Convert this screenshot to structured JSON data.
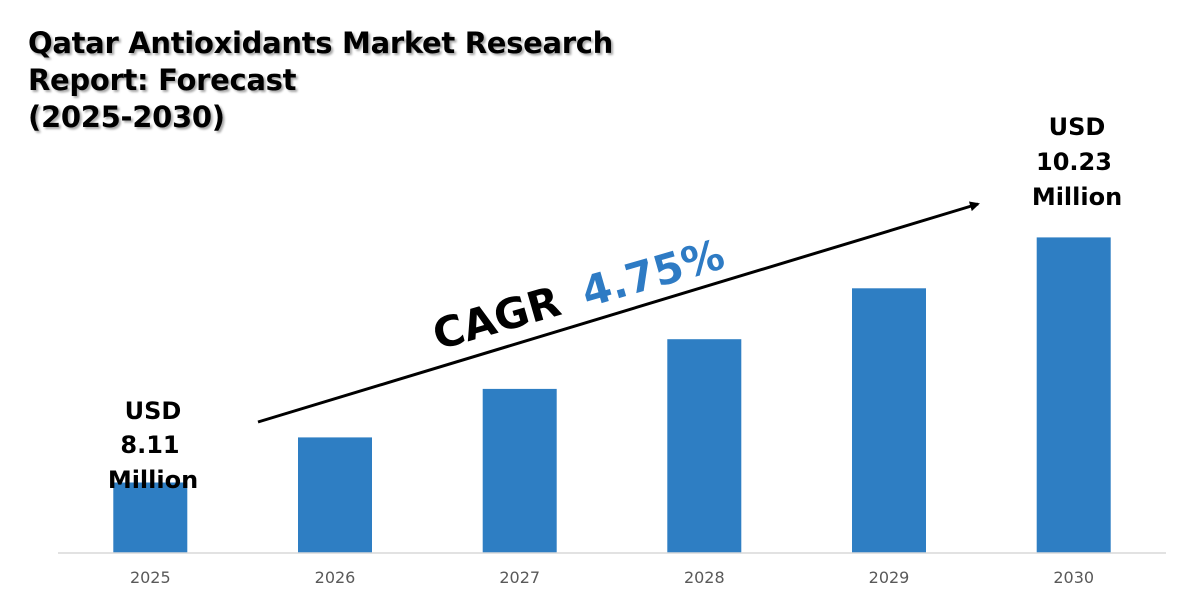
{
  "title": {
    "line1": "Qatar Antioxidants Market Research",
    "line2": "Report: Forecast",
    "line3": "(2025-2030)"
  },
  "cagr": {
    "prefix": "CAGR",
    "value": "4.75%",
    "prefix_color": "#000000",
    "value_color": "#2E7BC4"
  },
  "start_label": [
    "USD",
    "8.11",
    "Million"
  ],
  "end_label": [
    "USD",
    "10.23",
    "Million"
  ],
  "colors": {
    "bar": "#2E7EC3",
    "axis": "#D9D9D9"
  },
  "chart_data": {
    "type": "bar",
    "categories": [
      "2025",
      "2026",
      "2027",
      "2028",
      "2029",
      "2030"
    ],
    "values": [
      8.11,
      8.5,
      8.92,
      9.35,
      9.79,
      10.23
    ],
    "ylim": [
      7.5,
      10.9
    ],
    "unit": "USD Million",
    "grid": false,
    "legend": "none"
  }
}
